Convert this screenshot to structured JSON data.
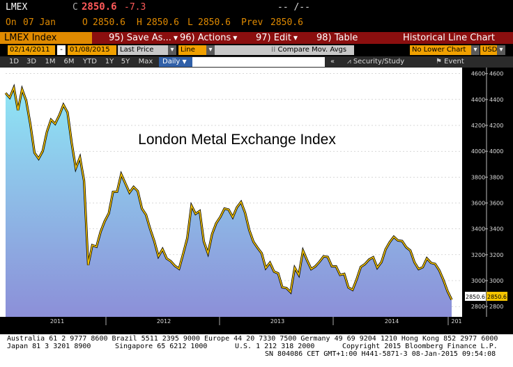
{
  "quote": {
    "ticker": "LMEX",
    "last_label": "C",
    "last": "2850.6",
    "change": "-7.3",
    "time": "-- /--",
    "date_prefix": "On",
    "date": "07 Jan",
    "open_label": "O",
    "open": "2850.6",
    "high_label": "H",
    "high": "2850.6",
    "low_label": "L",
    "low": "2850.6",
    "prev_label": "Prev",
    "prev": "2850.6"
  },
  "menu": {
    "security": "LMEX Index",
    "save": "95) Save As...",
    "actions": "96) Actions",
    "edit": "97) Edit",
    "table": "98) Table",
    "title": "Historical Line Chart"
  },
  "params": {
    "start_date": "02/14/2011",
    "dash": "-",
    "end_date": "01/08/2015",
    "field": "Last Price",
    "style": "Line",
    "compare": "Compare Mov. Avgs",
    "lower_chart": "No Lower Chart",
    "currency": "USD"
  },
  "toolbar": {
    "periods": [
      "1D",
      "3D",
      "1M",
      "6M",
      "YTD",
      "1Y",
      "5Y",
      "Max"
    ],
    "frequency": "Daily",
    "collapse": "«",
    "security_study": "Security/Study",
    "event": "Event"
  },
  "chart_data": {
    "type": "area",
    "title": "London Metal Exchange Index",
    "xlabel": "",
    "ylabel": "",
    "ylim": [
      2720,
      4620
    ],
    "yticks": [
      2800,
      3000,
      3200,
      3400,
      3600,
      3800,
      4000,
      4200,
      4400,
      4600
    ],
    "xtick_labels": [
      "2011",
      "2012",
      "2013",
      "2014",
      "201"
    ],
    "last_value_label": "2850.6",
    "series": [
      {
        "values": [
          4450,
          4420,
          4480,
          4320,
          4470,
          4390,
          4200,
          4000,
          3940,
          4010,
          4150,
          4250,
          4200,
          4280,
          4350,
          4300,
          4060,
          3880,
          3950,
          3780,
          3120,
          3280,
          3250,
          3380,
          3450,
          3520,
          3680,
          3700,
          3820,
          3760,
          3680,
          3730,
          3680,
          3560,
          3500,
          3400,
          3300,
          3200,
          3240,
          3180,
          3150,
          3120,
          3080,
          3210,
          3320,
          3580,
          3510,
          3550,
          3300,
          3220,
          3360,
          3450,
          3480,
          3560,
          3540,
          3490,
          3560,
          3620,
          3520,
          3400,
          3300,
          3260,
          3200,
          3100,
          3130,
          3070,
          3050,
          2960,
          2940,
          2920,
          3100,
          3050,
          3220,
          3160,
          3080,
          3110,
          3140,
          3200,
          3180,
          3120,
          3110,
          3050,
          3040,
          2950,
          2920,
          3010,
          3100,
          3140,
          3160,
          3190,
          3100,
          3150,
          3230,
          3300,
          3330,
          3310,
          3300,
          3270,
          3230,
          3150,
          3090,
          3110,
          3160,
          3140,
          3120,
          3080,
          3000,
          2930,
          2850
        ]
      }
    ],
    "fill_top_color": "#8fe6f5",
    "fill_bottom_color": "#8c8fd8",
    "line_color": "#f5c400"
  },
  "footer": {
    "line1": "Australia 61 2 9777 8600 Brazil 5511 2395 9000 Europe 44 20 7330 7500 Germany 49 69 9204 1210 Hong Kong 852 2977 6000",
    "line2a": "Japan 81 3 3201 8900",
    "line2b": "Singapore 65 6212 1000",
    "line2c": "U.S. 1 212 318 2000",
    "line2d": "Copyright 2015 Bloomberg Finance L.P.",
    "line3": "SN 804086 CET  GMT+1:00 H441-5871-3 08-Jan-2015 09:54:08"
  }
}
